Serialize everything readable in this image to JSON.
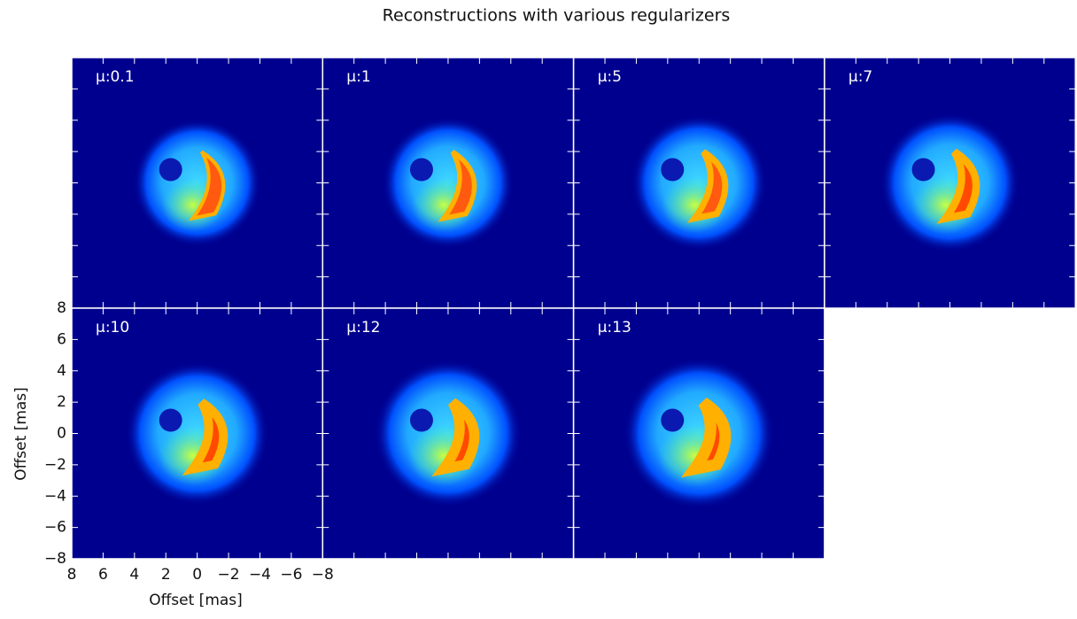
{
  "chart_data": {
    "type": "image",
    "title": "Reconstructions with various regularizers",
    "panels": [
      {
        "label": "μ:0.1"
      },
      {
        "label": "μ:1"
      },
      {
        "label": "μ:5"
      },
      {
        "label": "μ:7"
      },
      {
        "label": "μ:10"
      },
      {
        "label": "μ:12"
      },
      {
        "label": "μ:13"
      }
    ],
    "xlabel": "Offset [mas]",
    "ylabel": "Offset [mas]",
    "xlim": [
      8,
      -8
    ],
    "ylim": [
      -8,
      8
    ],
    "xticks": [
      8,
      6,
      4,
      2,
      0,
      {
        "value": -2,
        "label": "−2"
      },
      {
        "value": -4,
        "label": "−4"
      },
      {
        "value": -6,
        "label": "−6"
      },
      {
        "value": -8,
        "label": "−8"
      }
    ],
    "yticks": [
      {
        "value": -8,
        "label": "−8"
      },
      {
        "value": -6,
        "label": "−6"
      },
      {
        "value": -4,
        "label": "−4"
      },
      {
        "value": -2,
        "label": "−2"
      },
      0,
      2,
      4,
      6,
      8
    ]
  }
}
